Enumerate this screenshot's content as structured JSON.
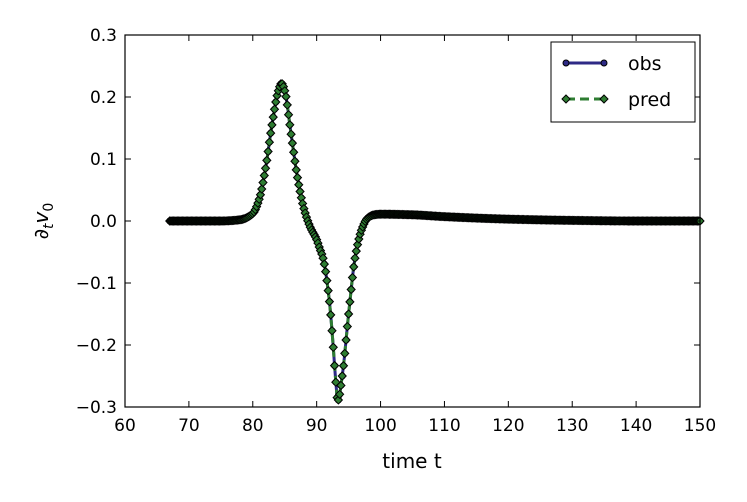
{
  "chart_data": {
    "type": "line",
    "title": "",
    "xlabel": "time t",
    "ylabel": "∂tv0",
    "ylabel_main": "∂",
    "ylabel_sub1": "t",
    "ylabel_var": "v",
    "ylabel_sub2": "0",
    "xlim": [
      60,
      150
    ],
    "ylim": [
      -0.3,
      0.3
    ],
    "xticks": [
      60,
      70,
      80,
      90,
      100,
      110,
      120,
      130,
      140,
      150
    ],
    "xtick_labels": [
      "60",
      "70",
      "80",
      "90",
      "100",
      "110",
      "120",
      "130",
      "140",
      "150"
    ],
    "yticks": [
      0.3,
      0.2,
      0.1,
      0.0,
      -0.1,
      -0.2,
      -0.3
    ],
    "ytick_labels": [
      "0.3",
      "0.2",
      "0.1",
      "0.0",
      "−0.1",
      "−0.2",
      "−0.3"
    ],
    "grid": false,
    "legend_position": "top-right",
    "x": [
      67,
      70,
      75,
      78,
      80,
      81,
      82,
      83,
      84,
      84.5,
      85,
      86,
      87,
      88,
      89,
      90,
      90.5,
      91,
      92,
      92.5,
      93,
      93.3,
      94,
      95,
      96,
      97,
      98,
      99,
      100,
      105,
      110,
      120,
      130,
      140,
      150
    ],
    "series": [
      {
        "name": "obs",
        "color": "#2e2a86",
        "style": "solid",
        "values": [
          0.0,
          0.0,
          0.0,
          0.002,
          0.012,
          0.035,
          0.085,
          0.155,
          0.21,
          0.222,
          0.21,
          0.14,
          0.07,
          0.02,
          -0.01,
          -0.03,
          -0.045,
          -0.06,
          -0.13,
          -0.19,
          -0.26,
          -0.29,
          -0.25,
          -0.15,
          -0.06,
          -0.015,
          0.005,
          0.01,
          0.011,
          0.01,
          0.007,
          0.003,
          0.001,
          0.0,
          0.0
        ]
      },
      {
        "name": "pred",
        "color": "#2e7d32",
        "style": "dashed",
        "values": [
          0.0,
          0.0,
          0.0,
          0.002,
          0.012,
          0.035,
          0.085,
          0.155,
          0.21,
          0.222,
          0.21,
          0.14,
          0.07,
          0.02,
          -0.01,
          -0.03,
          -0.045,
          -0.06,
          -0.13,
          -0.19,
          -0.26,
          -0.29,
          -0.25,
          -0.15,
          -0.06,
          -0.015,
          0.005,
          0.01,
          0.011,
          0.01,
          0.007,
          0.003,
          0.001,
          0.0,
          0.0
        ]
      }
    ]
  }
}
